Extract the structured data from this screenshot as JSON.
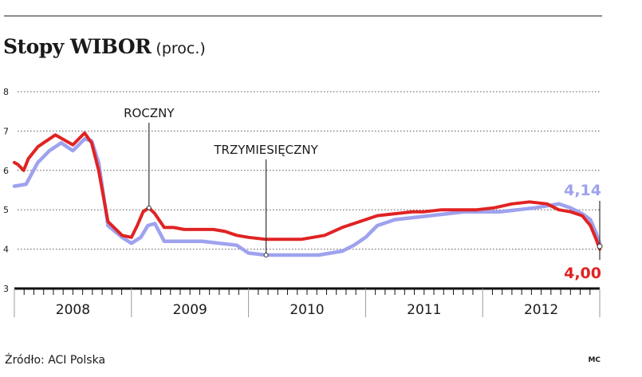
{
  "title": "Stopy WIBOR",
  "subtitle": "(proc.)",
  "source": "Źródło: ACI Polska",
  "credit": "MC",
  "chart_data": {
    "type": "line",
    "x_unit": "year",
    "xlim": [
      2008.0,
      2013.0
    ],
    "ylim": [
      3,
      8
    ],
    "yticks": [
      3,
      4,
      5,
      6,
      7,
      8
    ],
    "year_labels": [
      "2008",
      "2009",
      "2010",
      "2011",
      "2012"
    ],
    "grid": true,
    "series": [
      {
        "name": "ROCZNY",
        "color": "#e02323",
        "x": [
          2008.0,
          2008.03,
          2008.08,
          2008.12,
          2008.2,
          2008.25,
          2008.35,
          2008.5,
          2008.6,
          2008.66,
          2008.72,
          2008.8,
          2008.92,
          2009.0,
          2009.05,
          2009.1,
          2009.15,
          2009.2,
          2009.28,
          2009.36,
          2009.45,
          2009.53,
          2009.58,
          2009.7,
          2009.8,
          2009.9,
          2010.0,
          2010.15,
          2010.3,
          2010.45,
          2010.55,
          2010.65,
          2010.8,
          2010.95,
          2011.1,
          2011.25,
          2011.4,
          2011.5,
          2011.65,
          2011.8,
          2011.95,
          2012.1,
          2012.25,
          2012.4,
          2012.55,
          2012.65,
          2012.75,
          2012.85,
          2012.92,
          2012.97,
          2013.0
        ],
        "y": [
          6.2,
          6.15,
          6.0,
          6.3,
          6.6,
          6.7,
          6.9,
          6.65,
          6.95,
          6.7,
          6.0,
          4.7,
          4.35,
          4.3,
          4.6,
          4.95,
          5.05,
          4.9,
          4.55,
          4.55,
          4.5,
          4.5,
          4.5,
          4.5,
          4.45,
          4.35,
          4.3,
          4.25,
          4.25,
          4.25,
          4.3,
          4.35,
          4.55,
          4.7,
          4.85,
          4.9,
          4.95,
          4.95,
          5.0,
          5.0,
          5.0,
          5.05,
          5.15,
          5.2,
          5.15,
          5.0,
          4.95,
          4.85,
          4.6,
          4.25,
          4.0
        ]
      },
      {
        "name": "TRZYMIESIĘCZNY",
        "color": "#9ea2ee",
        "x": [
          2008.0,
          2008.1,
          2008.2,
          2008.3,
          2008.4,
          2008.5,
          2008.6,
          2008.66,
          2008.72,
          2008.8,
          2008.92,
          2009.0,
          2009.08,
          2009.14,
          2009.2,
          2009.28,
          2009.45,
          2009.6,
          2009.75,
          2009.9,
          2010.0,
          2010.15,
          2010.3,
          2010.45,
          2010.6,
          2010.7,
          2010.8,
          2010.9,
          2011.0,
          2011.1,
          2011.25,
          2011.4,
          2011.55,
          2011.7,
          2011.85,
          2012.0,
          2012.15,
          2012.3,
          2012.45,
          2012.55,
          2012.65,
          2012.75,
          2012.85,
          2012.92,
          2012.97,
          2013.0
        ],
        "y": [
          5.6,
          5.65,
          6.2,
          6.5,
          6.7,
          6.5,
          6.8,
          6.75,
          6.2,
          4.6,
          4.3,
          4.15,
          4.3,
          4.6,
          4.65,
          4.2,
          4.2,
          4.2,
          4.15,
          4.1,
          3.9,
          3.85,
          3.85,
          3.85,
          3.85,
          3.9,
          3.95,
          4.1,
          4.3,
          4.6,
          4.75,
          4.8,
          4.85,
          4.9,
          4.95,
          4.95,
          4.95,
          5.0,
          5.05,
          5.1,
          5.15,
          5.05,
          4.9,
          4.75,
          4.4,
          4.14
        ]
      }
    ],
    "annotations": [
      {
        "text": "ROCZNY",
        "series": "ROCZNY",
        "x": 2009.15,
        "y": 5.05
      },
      {
        "text": "TRZYMIESIĘCZNY",
        "series": "TRZYMIESIĘCZNY",
        "x": 2010.15,
        "y": 3.85
      }
    ],
    "end_labels": [
      {
        "text": "4,14",
        "series": "TRZYMIESIĘCZNY",
        "color": "#9ea2ee",
        "value": 4.14
      },
      {
        "text": "4,00",
        "series": "ROCZNY",
        "color": "#e02323",
        "value": 4.0
      }
    ]
  }
}
